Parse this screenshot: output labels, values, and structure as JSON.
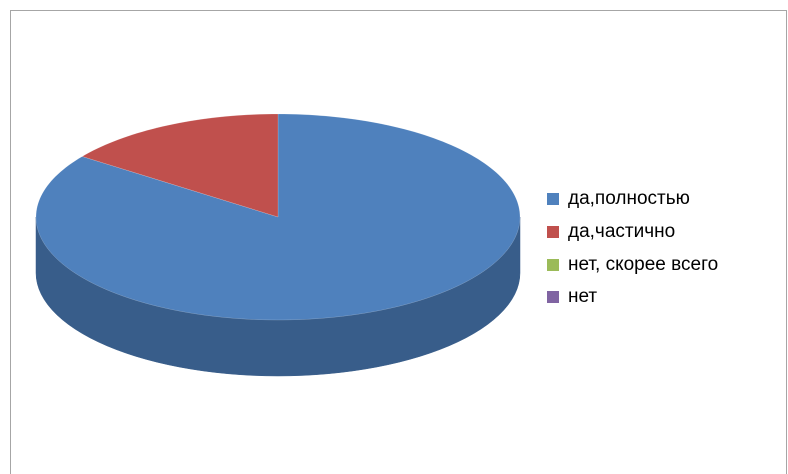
{
  "chart_data": {
    "type": "pie3d",
    "categories": [
      "да,полностью",
      "да,частично",
      "нет, скорее всего",
      "нет"
    ],
    "values": [
      85,
      15,
      0,
      0
    ],
    "colors": [
      "#4f81bd",
      "#c0504d",
      "#9bbb59",
      "#8064a2"
    ],
    "side_colors": [
      "#385d8a",
      "#8c3a38",
      "#71893f",
      "#5c4776"
    ],
    "legend": "right"
  }
}
